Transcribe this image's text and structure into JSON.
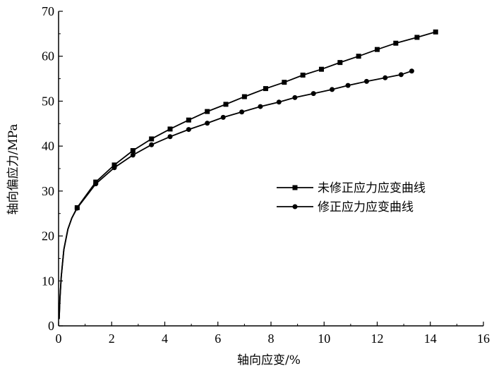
{
  "chart_data": {
    "type": "line",
    "title": "",
    "xlabel": "轴向应变/%",
    "ylabel": "轴向偏应力/MPa",
    "xlim": [
      0,
      16
    ],
    "ylim": [
      0,
      70
    ],
    "x_ticks": [
      0,
      2,
      4,
      6,
      8,
      10,
      12,
      14,
      16
    ],
    "y_ticks": [
      0,
      10,
      20,
      30,
      40,
      50,
      60,
      70
    ],
    "grid": false,
    "legend_position": "right-middle",
    "series": [
      {
        "name": "未修正应力应变曲线",
        "marker": "square",
        "color": "#000000",
        "x": [
          0.02,
          0.05,
          0.1,
          0.2,
          0.35,
          0.5,
          0.7,
          1.4,
          2.1,
          2.8,
          3.5,
          4.2,
          4.9,
          5.6,
          6.3,
          7.0,
          7.8,
          8.5,
          9.2,
          9.9,
          10.6,
          11.3,
          12.0,
          12.7,
          13.5,
          14.2
        ],
        "y": [
          1.5,
          6.0,
          11.0,
          17.0,
          21.5,
          24.0,
          26.3,
          32.0,
          35.8,
          39.0,
          41.6,
          43.8,
          45.8,
          47.7,
          49.3,
          51.0,
          52.8,
          54.2,
          55.8,
          57.1,
          58.6,
          60.0,
          61.5,
          62.9,
          64.2,
          65.4
        ]
      },
      {
        "name": "修正应力应变曲线",
        "marker": "circle",
        "color": "#000000",
        "x": [
          0.02,
          0.05,
          0.1,
          0.2,
          0.35,
          0.5,
          0.7,
          1.4,
          2.1,
          2.8,
          3.5,
          4.2,
          4.9,
          5.6,
          6.2,
          6.9,
          7.6,
          8.3,
          8.9,
          9.6,
          10.3,
          10.9,
          11.6,
          12.3,
          12.9,
          13.3
        ],
        "y": [
          1.5,
          6.0,
          11.0,
          17.0,
          21.5,
          24.0,
          26.2,
          31.6,
          35.2,
          38.0,
          40.3,
          42.1,
          43.7,
          45.1,
          46.4,
          47.6,
          48.8,
          49.8,
          50.8,
          51.7,
          52.6,
          53.5,
          54.4,
          55.2,
          55.9,
          56.7
        ]
      }
    ]
  }
}
